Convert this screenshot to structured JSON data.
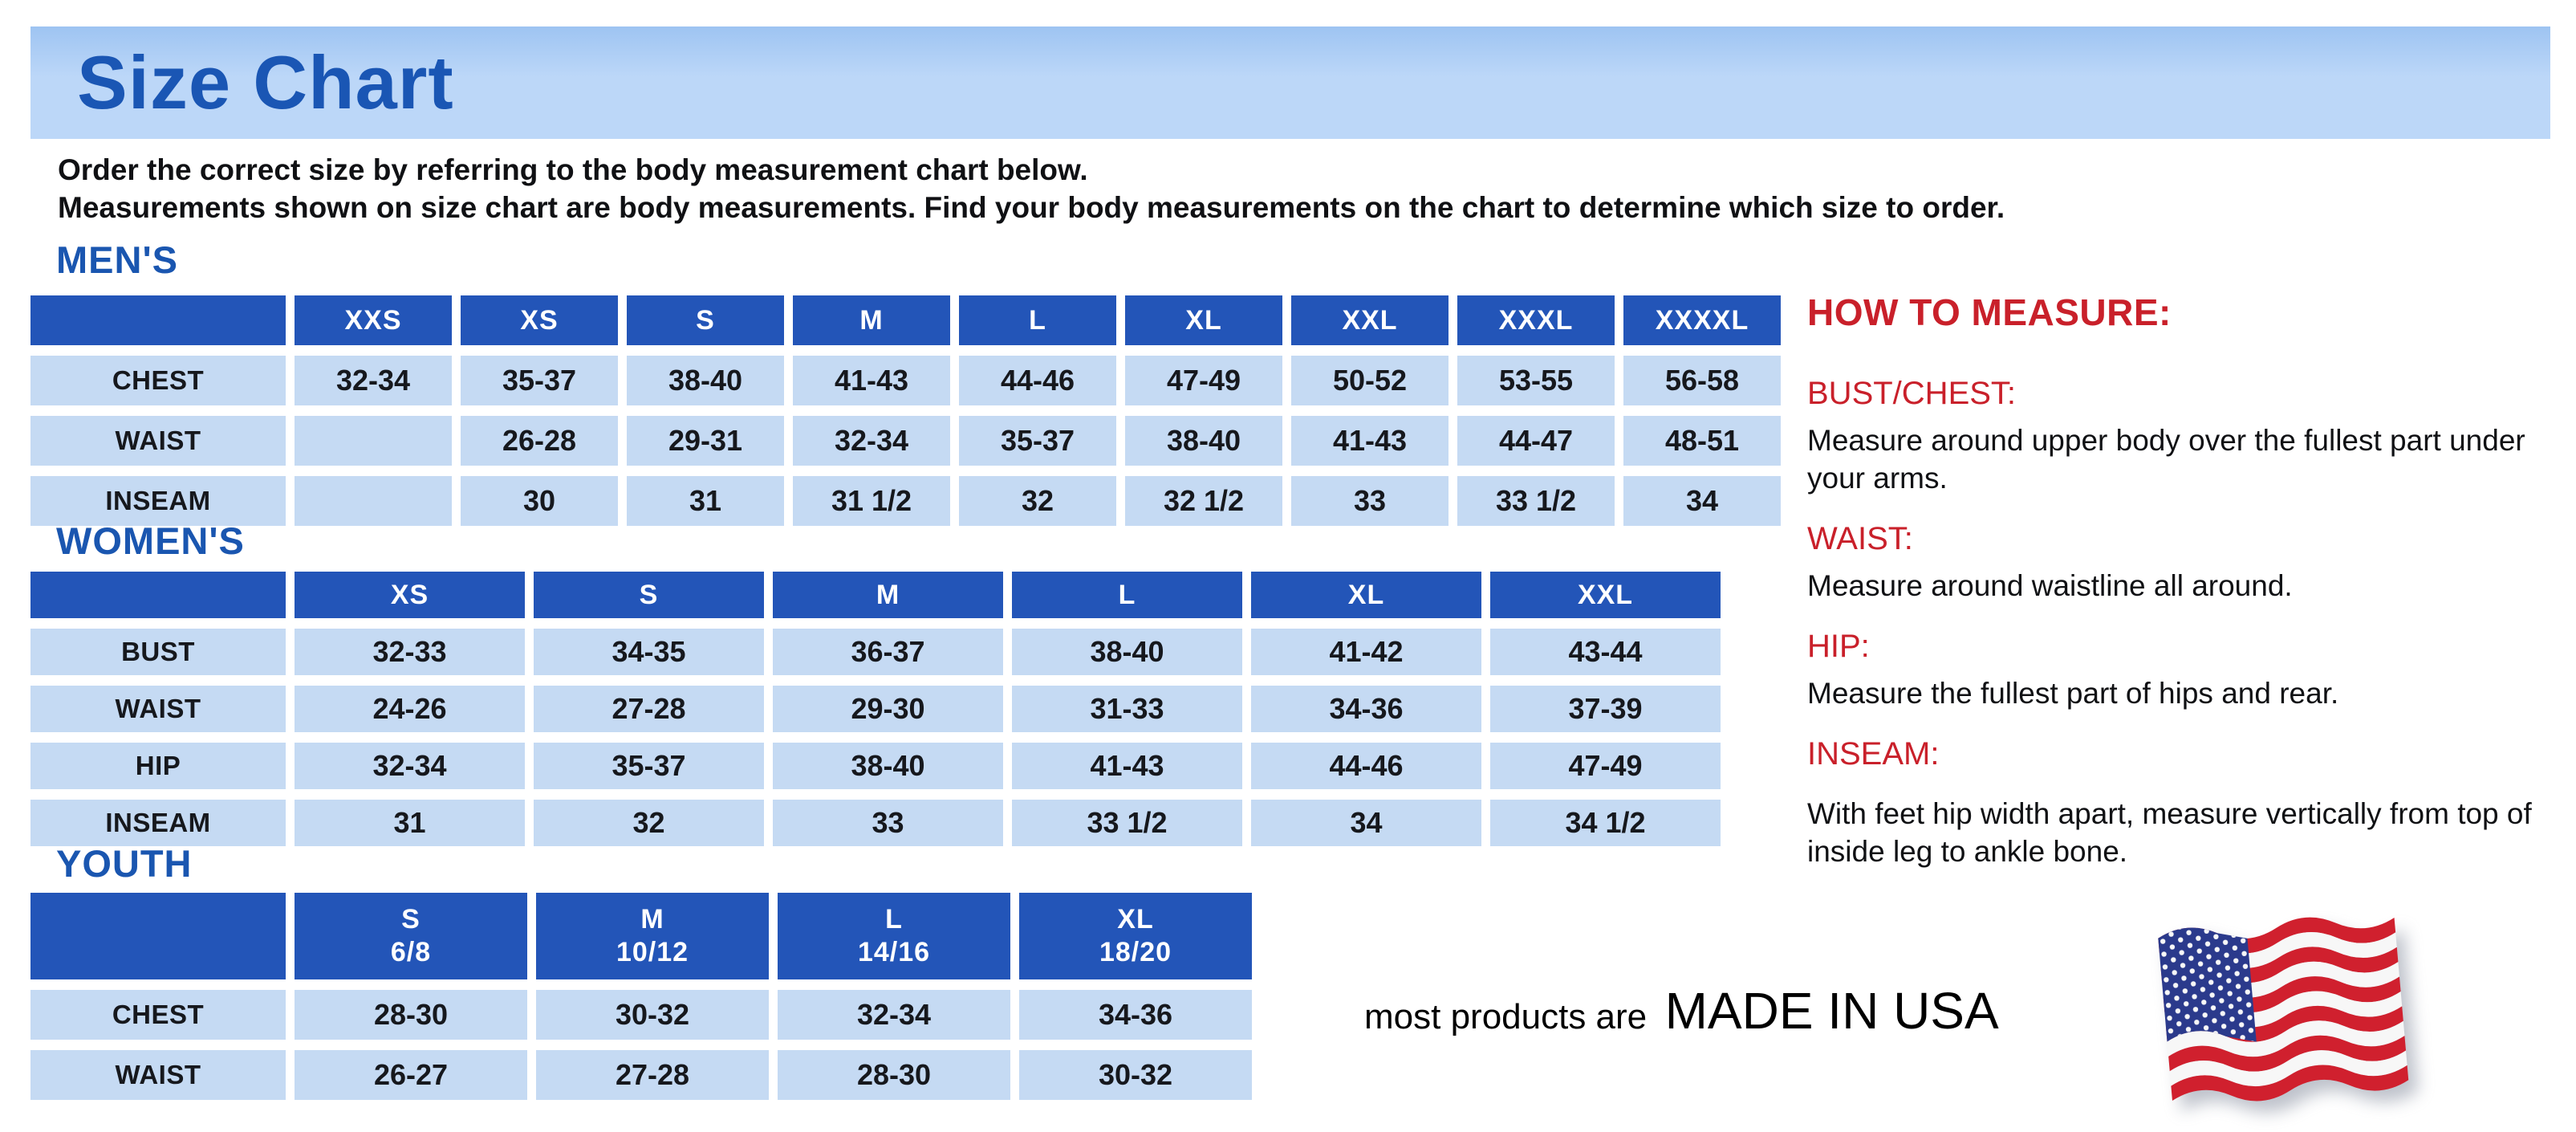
{
  "title": "Size Chart",
  "intro": {
    "line1": "Order the correct size by referring to the body measurement chart below.",
    "line2": "Measurements shown on size chart are body measurements.  Find your body measurements on the chart to determine which size to order."
  },
  "tables": [
    {
      "id": "mens",
      "heading": "MEN'S",
      "columns": [
        "",
        "XXS",
        "XS",
        "S",
        "M",
        "L",
        "XL",
        "XXL",
        "XXXL",
        "XXXXL"
      ],
      "rows": [
        {
          "label": "CHEST",
          "values": [
            "32-34",
            "35-37",
            "38-40",
            "41-43",
            "44-46",
            "47-49",
            "50-52",
            "53-55",
            "56-58"
          ]
        },
        {
          "label": "WAIST",
          "values": [
            "",
            "26-28",
            "29-31",
            "32-34",
            "35-37",
            "38-40",
            "41-43",
            "44-47",
            "48-51"
          ]
        },
        {
          "label": "INSEAM",
          "values": [
            "",
            "30",
            "31",
            "31 1/2",
            "32",
            "32 1/2",
            "33",
            "33 1/2",
            "34"
          ]
        }
      ]
    },
    {
      "id": "womens",
      "heading": "WOMEN'S",
      "columns": [
        "",
        "XS",
        "S",
        "M",
        "L",
        "XL",
        "XXL"
      ],
      "rows": [
        {
          "label": "BUST",
          "values": [
            "32-33",
            "34-35",
            "36-37",
            "38-40",
            "41-42",
            "43-44"
          ]
        },
        {
          "label": "WAIST",
          "values": [
            "24-26",
            "27-28",
            "29-30",
            "31-33",
            "34-36",
            "37-39"
          ]
        },
        {
          "label": "HIP",
          "values": [
            "32-34",
            "35-37",
            "38-40",
            "41-43",
            "44-46",
            "47-49"
          ]
        },
        {
          "label": "INSEAM",
          "values": [
            "31",
            "32",
            "33",
            "33 1/2",
            "34",
            "34 1/2"
          ]
        }
      ]
    },
    {
      "id": "youth",
      "heading": "YOUTH",
      "columns": [
        "",
        "S\n6/8",
        "M\n10/12",
        "L\n14/16",
        "XL\n18/20"
      ],
      "rows": [
        {
          "label": "CHEST",
          "values": [
            "28-30",
            "30-32",
            "32-34",
            "34-36"
          ]
        },
        {
          "label": "WAIST",
          "values": [
            "26-27",
            "27-28",
            "28-30",
            "30-32"
          ]
        }
      ]
    }
  ],
  "how_to_measure": {
    "heading": "HOW TO MEASURE:",
    "items": [
      {
        "term": "BUST/CHEST:",
        "definition": "Measure around upper body over the fullest part under your arms."
      },
      {
        "term": "WAIST:",
        "definition": "Measure around waistline all around."
      },
      {
        "term": "HIP:",
        "definition": "Measure the fullest part of hips and rear."
      },
      {
        "term": "INSEAM:",
        "definition": "With feet hip width apart, measure vertically from top of inside leg to ankle bone."
      }
    ]
  },
  "footer": {
    "prefix": "most products are",
    "emphasis": "MADE IN USA",
    "flag_icon": "usa-flag-icon"
  },
  "colors": {
    "header_blue": "#2355b8",
    "cell_blue": "#c5daf3",
    "banner": "#bcd7f8",
    "banner_top": "#9ec4f2",
    "title_blue": "#1a56b4",
    "head_blue": "#1a56b0",
    "red": "#c9202a",
    "flag_red": "#d0202e",
    "flag_blue": "#2b3a8c",
    "flag_white": "#f7f7f7"
  }
}
